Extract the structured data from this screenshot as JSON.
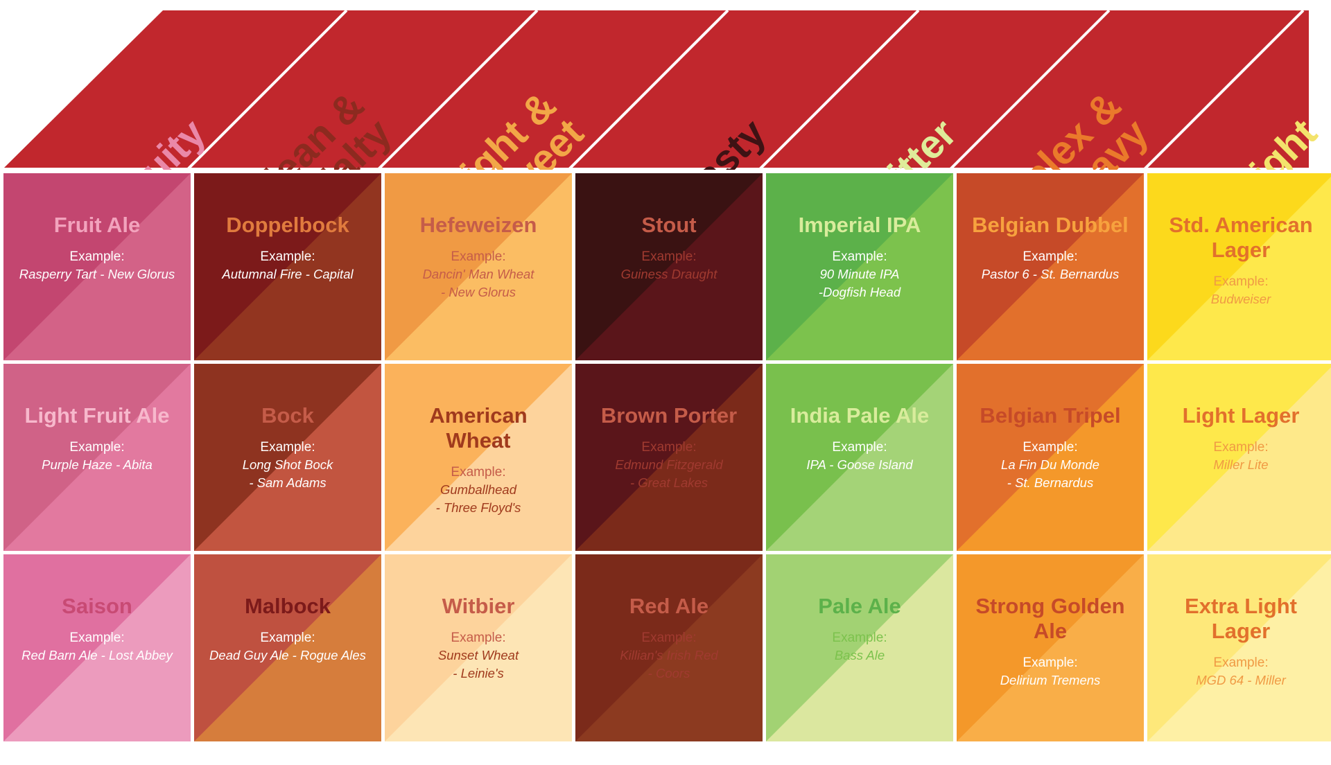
{
  "categories": [
    {
      "label": "Fruity",
      "lines": [
        "Fruity"
      ],
      "color": "#ea88a8"
    },
    {
      "label": "Clean & Malty",
      "lines": [
        "Clean &",
        "Malty"
      ],
      "color": "#8c2a1f"
    },
    {
      "label": "Light & Sweet",
      "lines": [
        "Light &",
        "Sweet"
      ],
      "color": "#f2a747"
    },
    {
      "label": "Roasty",
      "lines": [
        "Roasty"
      ],
      "color": "#3e1214"
    },
    {
      "label": "Bitter",
      "lines": [
        "Bitter"
      ],
      "color": "#dfec9a"
    },
    {
      "label": "Complex & Heavy",
      "lines": [
        "Complex &",
        "Heavy"
      ],
      "color": "#ea7a2b"
    },
    {
      "label": "Light",
      "lines": [
        "Light"
      ],
      "color": "#f3e36c"
    }
  ],
  "example_label": "Example:",
  "banner_color": "#c1272d",
  "columns": [
    [
      {
        "name": [
          "Fruit Ale"
        ],
        "example": [
          "Rasperry Tart - New Glorus"
        ],
        "c1": "#c34670",
        "c2": "#d36287",
        "name_color": "#f2a3bd",
        "label_color": "#ffffff",
        "ex_color": "#ffffff"
      },
      {
        "name": [
          "Light Fruit Ale"
        ],
        "example": [
          "Purple Haze - Abita"
        ],
        "c1": "#d06287",
        "c2": "#e2799f",
        "name_color": "#f7b8cc",
        "label_color": "#ffffff",
        "ex_color": "#ffffff"
      },
      {
        "name": [
          "Saison"
        ],
        "example": [
          "Red Barn Ale - Lost Abbey"
        ],
        "c1": "#e070a0",
        "c2": "#ec9bbd",
        "name_color": "#c84a74",
        "label_color": "#ffffff",
        "ex_color": "#ffffff"
      }
    ],
    [
      {
        "name": [
          "Doppelbock"
        ],
        "example": [
          "Autumnal Fire - Capital"
        ],
        "c1": "#7c1a1a",
        "c2": "#923520",
        "name_color": "#e07b3e",
        "label_color": "#ffffff",
        "ex_color": "#ffffff"
      },
      {
        "name": [
          "Bock"
        ],
        "example": [
          "Long Shot Bock",
          "- Sam Adams"
        ],
        "c1": "#8e3320",
        "c2": "#c25540",
        "name_color": "#c55c49",
        "label_color": "#ffffff",
        "ex_color": "#ffffff"
      },
      {
        "name": [
          "Malbock"
        ],
        "example": [
          "Dead Guy Ale - Rogue Ales"
        ],
        "c1": "#bf5140",
        "c2": "#d67d3c",
        "name_color": "#7c1a1a",
        "label_color": "#ffffff",
        "ex_color": "#ffffff"
      }
    ],
    [
      {
        "name": [
          "Hefeweizen"
        ],
        "example": [
          "Dancin' Man Wheat",
          "- New Glorus"
        ],
        "c1": "#f09a44",
        "c2": "#fbbd63",
        "name_color": "#c55c49",
        "label_color": "#c55c49",
        "ex_color": "#c55c49"
      },
      {
        "name": [
          "American",
          "Wheat"
        ],
        "example": [
          "Gumballhead",
          "- Three Floyd's"
        ],
        "c1": "#fbb25b",
        "c2": "#fdd39c",
        "name_color": "#a03a1d",
        "label_color": "#c55c49",
        "ex_color": "#a03a1d"
      },
      {
        "name": [
          "Witbier"
        ],
        "example": [
          "Sunset Wheat",
          "- Leinie's"
        ],
        "c1": "#fdd39c",
        "c2": "#fde5b5",
        "name_color": "#c55c49",
        "label_color": "#c55c49",
        "ex_color": "#a03a1d"
      }
    ],
    [
      {
        "name": [
          "Stout"
        ],
        "example": [
          "Guiness Draught"
        ],
        "c1": "#3a1212",
        "c2": "#5a151a",
        "name_color": "#c55c49",
        "label_color": "#a03a30",
        "ex_color": "#a03a30"
      },
      {
        "name": [
          "Brown Porter"
        ],
        "example": [
          "Edmund Fitzgerald",
          "- Great Lakes"
        ],
        "c1": "#5a151a",
        "c2": "#7b2a1a",
        "name_color": "#c55c49",
        "label_color": "#a03a30",
        "ex_color": "#a03a30"
      },
      {
        "name": [
          "Red Ale"
        ],
        "example": [
          "Killian's Irish Red",
          "- Coors"
        ],
        "c1": "#7b2a1a",
        "c2": "#8c3a20",
        "name_color": "#c55c49",
        "label_color": "#a03a30",
        "ex_color": "#a03a30"
      }
    ],
    [
      {
        "name": [
          "Imperial IPA"
        ],
        "example": [
          "90 Minute IPA",
          "-Dogfish Head"
        ],
        "c1": "#5cb14a",
        "c2": "#7cc24d",
        "name_color": "#d9ec9c",
        "label_color": "#ffffff",
        "ex_color": "#ffffff"
      },
      {
        "name": [
          "India Pale Ale"
        ],
        "example": [
          "IPA - Goose Island"
        ],
        "c1": "#79c04d",
        "c2": "#a4d377",
        "name_color": "#d9ec9c",
        "label_color": "#ffffff",
        "ex_color": "#ffffff"
      },
      {
        "name": [
          "Pale Ale"
        ],
        "example": [
          "Bass Ale"
        ],
        "c1": "#a2d273",
        "c2": "#dbe79f",
        "name_color": "#5cb14a",
        "label_color": "#7cc24d",
        "ex_color": "#7cc24d"
      }
    ],
    [
      {
        "name": [
          "Belgian Dubbel"
        ],
        "example": [
          "Pastor 6 - St. Bernardus"
        ],
        "c1": "#c64a28",
        "c2": "#e2702c",
        "name_color": "#f7a23e",
        "label_color": "#ffffff",
        "ex_color": "#ffffff"
      },
      {
        "name": [
          "Belgian Tripel"
        ],
        "example": [
          "La Fin Du Monde",
          "- St. Bernardus"
        ],
        "c1": "#e2702c",
        "c2": "#f4982a",
        "name_color": "#c64a28",
        "label_color": "#ffffff",
        "ex_color": "#ffffff"
      },
      {
        "name": [
          "Strong Golden",
          "Ale"
        ],
        "example": [
          "Delirium Tremens"
        ],
        "c1": "#f4982a",
        "c2": "#f9ae48",
        "name_color": "#c64a28",
        "label_color": "#ffffff",
        "ex_color": "#ffffff"
      }
    ],
    [
      {
        "name": [
          "Std. American",
          "Lager"
        ],
        "example": [
          "Budweiser"
        ],
        "c1": "#fcd91c",
        "c2": "#fee84b",
        "name_color": "#e2702c",
        "label_color": "#f09a44",
        "ex_color": "#f09a44"
      },
      {
        "name": [
          "Light Lager"
        ],
        "example": [
          "Miller Lite"
        ],
        "c1": "#fee84b",
        "c2": "#fee98a",
        "name_color": "#e2702c",
        "label_color": "#f09a44",
        "ex_color": "#f09a44"
      },
      {
        "name": [
          "Extra Light",
          "Lager"
        ],
        "example": [
          "MGD 64 - Miller"
        ],
        "c1": "#fee87a",
        "c2": "#fef0a5",
        "name_color": "#e2702c",
        "label_color": "#f09a44",
        "ex_color": "#f09a44"
      }
    ]
  ]
}
